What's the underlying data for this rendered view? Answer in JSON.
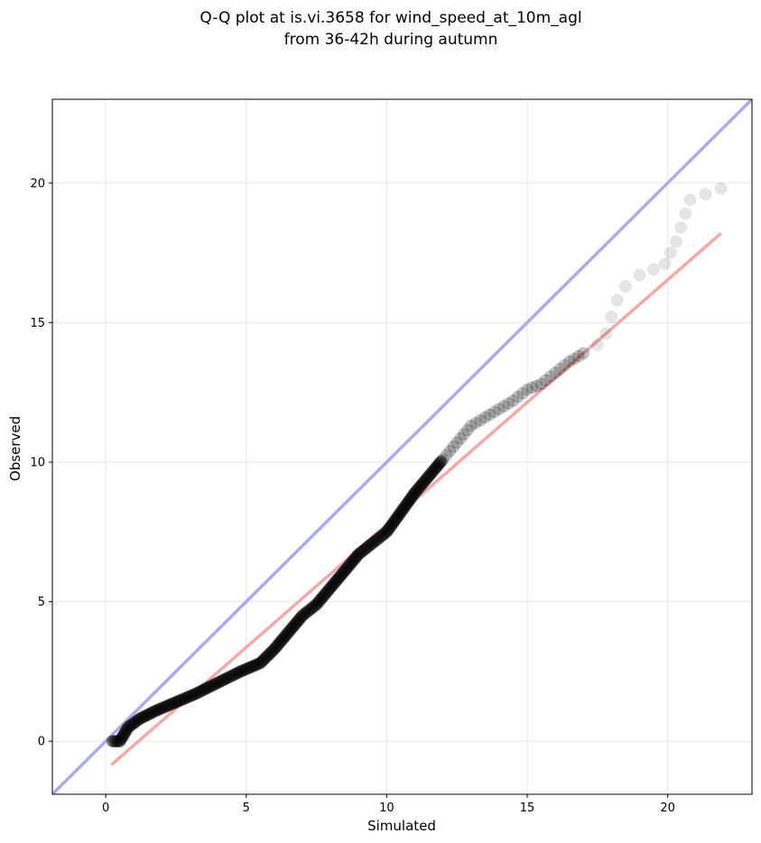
{
  "chart_data": {
    "type": "scatter",
    "title": "Q-Q plot at is.vi.3658 for wind_speed_at_10m_agl",
    "subtitle": "from 36-42h during autumn",
    "xlabel": "Simulated",
    "ylabel": "Observed",
    "xlim": [
      -1.9,
      23.0
    ],
    "ylim": [
      -1.9,
      23.0
    ],
    "xticks": [
      0,
      5,
      10,
      15,
      20
    ],
    "yticks": [
      0,
      5,
      10,
      15,
      20
    ],
    "grid": true,
    "quantile_curve": {
      "x": [
        0.25,
        0.5,
        0.8,
        1.2,
        1.8,
        2.5,
        3.2,
        4.0,
        4.8,
        5.5,
        6.0,
        6.5,
        7.0,
        7.5,
        8.0,
        8.5,
        9.0,
        9.5,
        10.0,
        10.5,
        11.0,
        11.5,
        12.0,
        12.5,
        13.0,
        13.5,
        14.0,
        14.5,
        15.0,
        15.5,
        16.0,
        16.5,
        17.0,
        17.5,
        17.8,
        18.0,
        18.2,
        18.5,
        19.0,
        19.5,
        19.9,
        20.3,
        20.8,
        21.9
      ],
      "y": [
        0.0,
        0.0,
        0.5,
        0.8,
        1.1,
        1.4,
        1.7,
        2.1,
        2.5,
        2.8,
        3.3,
        3.9,
        4.5,
        4.9,
        5.5,
        6.1,
        6.7,
        7.1,
        7.5,
        8.2,
        8.9,
        9.5,
        10.1,
        10.7,
        11.3,
        11.6,
        11.9,
        12.2,
        12.6,
        12.8,
        13.2,
        13.6,
        13.9,
        14.2,
        14.6,
        15.2,
        15.8,
        16.3,
        16.7,
        16.9,
        17.1,
        17.9,
        19.4,
        19.8
      ]
    },
    "reference_lines": [
      {
        "kind": "identity",
        "color": "#aaaaf0",
        "x": [
          -1.9,
          23.0
        ],
        "y": [
          -1.9,
          23.0
        ]
      },
      {
        "kind": "fit",
        "color": "#f5a8a8",
        "x": [
          0.2,
          21.9
        ],
        "y": [
          -0.85,
          18.2
        ]
      }
    ],
    "point_color": "#000000"
  }
}
